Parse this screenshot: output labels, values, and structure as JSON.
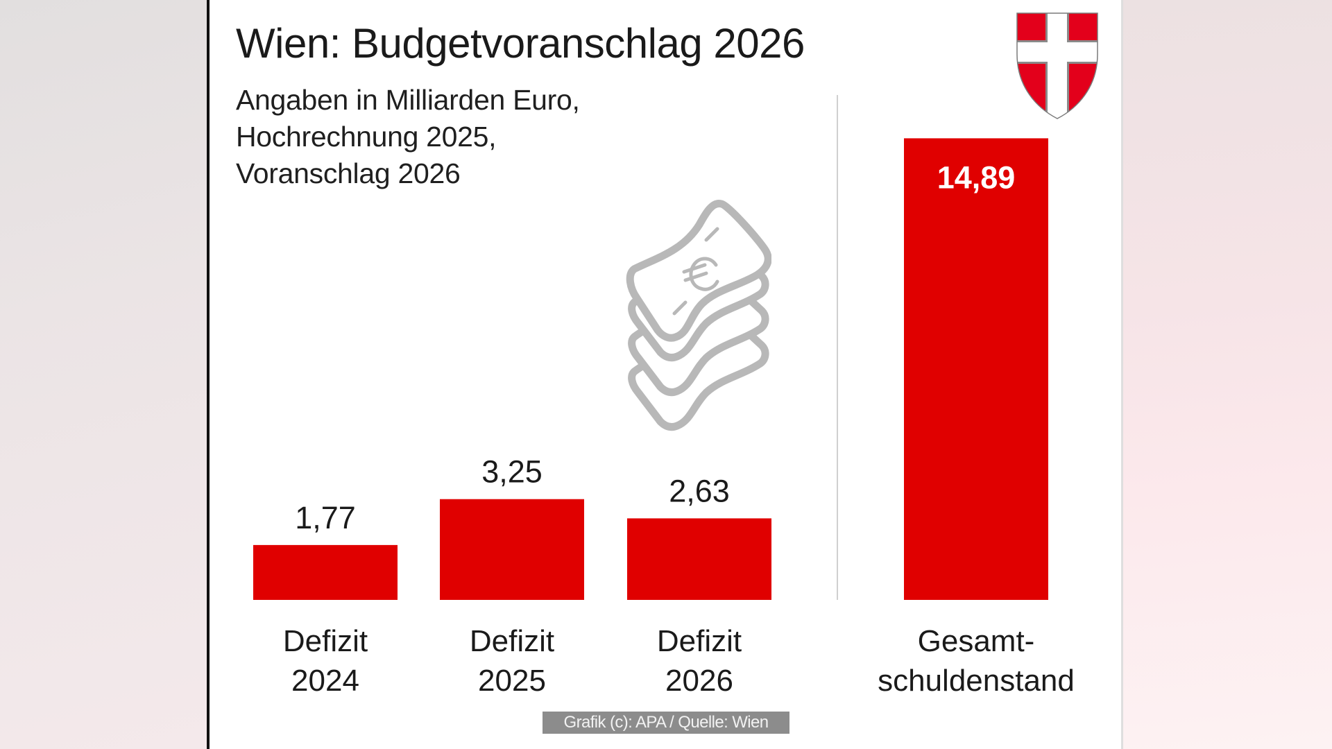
{
  "header": {
    "title": "Wien: Budgetvoranschlag 2026",
    "subtitle_lines": [
      "Angaben in Milliarden Euro,",
      "Hochrechnung 2025,",
      "Voranschlag 2026"
    ]
  },
  "icons": {
    "coat_of_arms": "vienna-coat-of-arms-icon",
    "money": "euro-banknote-stack-icon"
  },
  "colors": {
    "bar": "#e00000",
    "label_dark": "#1a1a1a",
    "label_on_bar": "#ffffff",
    "divider": "#d0d0d0",
    "icon_gray": "#b8b8b8",
    "credit_bg": "#8c8c8c"
  },
  "credit": "Grafik (c): APA / Quelle: Wien",
  "chart_data": {
    "type": "bar",
    "title": "Wien: Budgetvoranschlag 2026",
    "subtitle": "Angaben in Milliarden Euro, Hochrechnung 2025, Voranschlag 2026",
    "unit": "Mrd. Euro",
    "xlabel": "",
    "ylabel": "",
    "grid": false,
    "legend": "none",
    "ylim": [
      0,
      15
    ],
    "categories": [
      [
        "Defizit",
        "2024"
      ],
      [
        "Defizit",
        "2025"
      ],
      [
        "Defizit",
        "2026"
      ],
      [
        "Gesamt-",
        "schuldenstand"
      ]
    ],
    "values": [
      1.77,
      3.25,
      2.63,
      14.89
    ],
    "value_labels": [
      "1,77",
      "3,25",
      "2,63",
      "14,89"
    ],
    "label_inside_bar": [
      false,
      false,
      false,
      true
    ],
    "groups": [
      {
        "name": "Defizit",
        "indices": [
          0,
          1,
          2
        ]
      },
      {
        "name": "Gesamtschuldenstand",
        "indices": [
          3
        ]
      }
    ]
  }
}
